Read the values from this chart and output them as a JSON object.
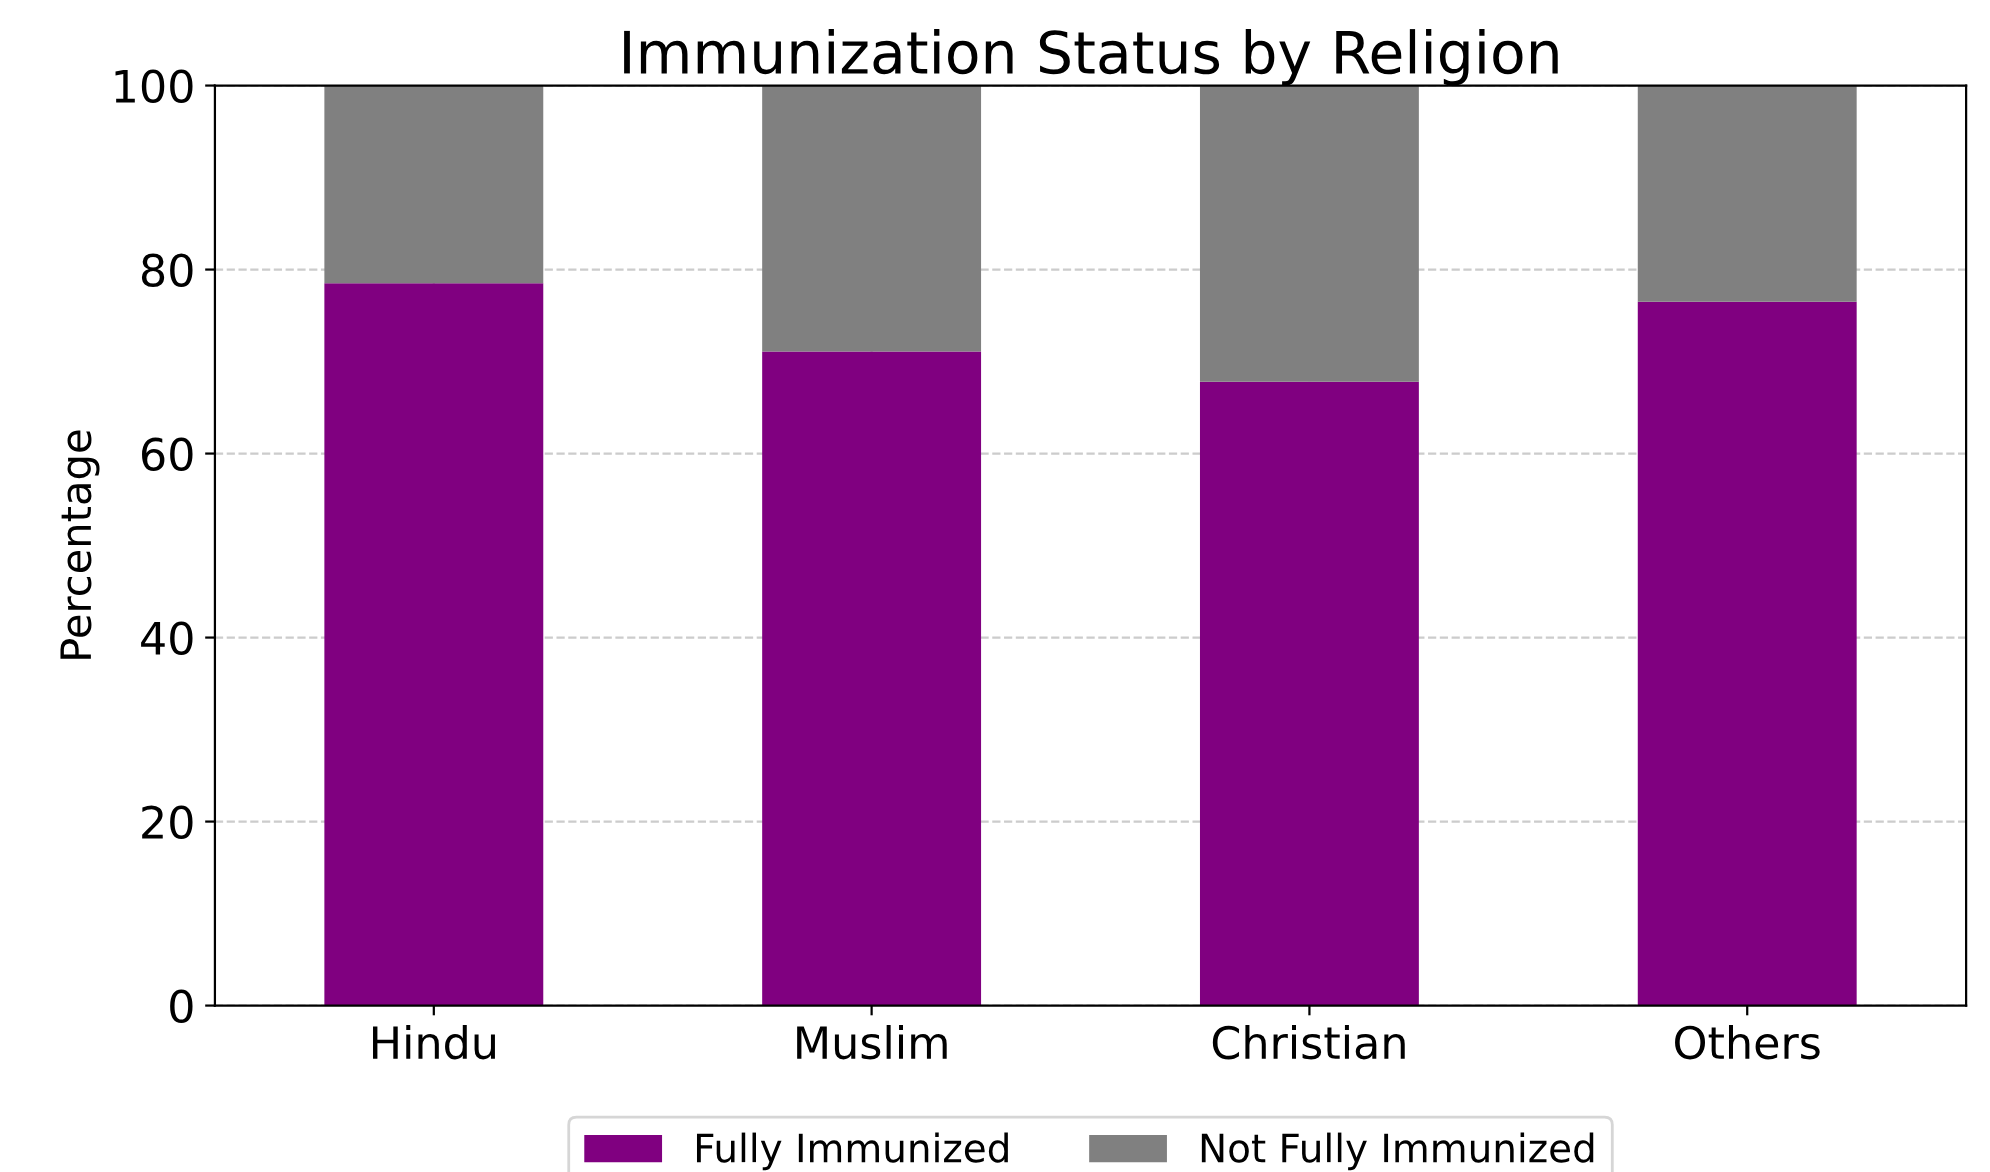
{
  "chart_data": {
    "type": "bar",
    "stacked": true,
    "title": "Immunization Status by Religion",
    "ylabel": "Percentage",
    "categories": [
      "Hindu",
      "Muslim",
      "Christian",
      "Others"
    ],
    "series": [
      {
        "name": "Fully Immunized",
        "color": "#800080",
        "values": [
          78.5,
          71.1,
          67.8,
          76.5
        ]
      },
      {
        "name": "Not Fully Immunized",
        "color": "#808080",
        "values": [
          21.5,
          28.9,
          32.2,
          23.5
        ]
      }
    ],
    "ylim": [
      0,
      100
    ],
    "yticks": [
      0,
      20,
      40,
      60,
      80,
      100
    ],
    "grid": true,
    "legend": "bottom"
  }
}
